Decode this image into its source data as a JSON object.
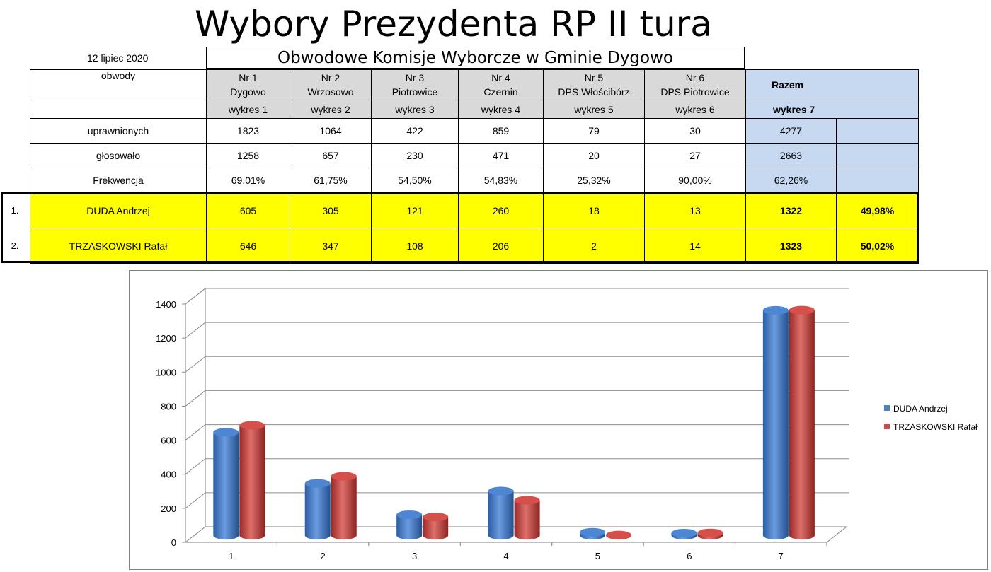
{
  "title": "Wybory Prezydenta RP II tura",
  "date": "12 lipiec 2020",
  "committee_title": "Obwodowe Komisje Wyborcze w Gminie Dygowo",
  "table": {
    "obwody_label": "obwody",
    "columns": [
      {
        "nr": "Nr 1",
        "name": "Dygowo",
        "chart_ref": "wykres 1"
      },
      {
        "nr": "Nr 2",
        "name": "Wrzosowo",
        "chart_ref": "wykres 2"
      },
      {
        "nr": "Nr 3",
        "name": "Piotrowice",
        "chart_ref": "wykres 3"
      },
      {
        "nr": "Nr 4",
        "name": "Czernin",
        "chart_ref": "wykres 4"
      },
      {
        "nr": "Nr 5",
        "name": "DPS Włościbórz",
        "chart_ref": "wykres 5"
      },
      {
        "nr": "Nr 6",
        "name": "DPS Piotrowice",
        "chart_ref": "wykres 6"
      }
    ],
    "total_label": "Razem",
    "total_chart_ref": "wykres 7",
    "rows": [
      {
        "label": "uprawnionych",
        "values": [
          "1823",
          "1064",
          "422",
          "859",
          "79",
          "30"
        ],
        "total": "4277"
      },
      {
        "label": "głosowało",
        "values": [
          "1258",
          "657",
          "230",
          "471",
          "20",
          "27"
        ],
        "total": "2663"
      },
      {
        "label": "Frekwencja",
        "values": [
          "69,01%",
          "61,75%",
          "54,50%",
          "54,83%",
          "25,32%",
          "90,00%"
        ],
        "total": "62,26%"
      }
    ],
    "candidates": [
      {
        "index": "1.",
        "name": "DUDA Andrzej",
        "values": [
          "605",
          "305",
          "121",
          "260",
          "18",
          "13"
        ],
        "total": "1322",
        "percent": "49,98%"
      },
      {
        "index": "2.",
        "name": "TRZASKOWSKI Rafał",
        "values": [
          "646",
          "347",
          "108",
          "206",
          "2",
          "14"
        ],
        "total": "1323",
        "percent": "50,02%"
      }
    ]
  },
  "colors": {
    "candidate_row": "#ffff00",
    "header_grey": "#d9d9d9",
    "total_blue": "#c6d9f1",
    "series_blue": "#4f81bd",
    "series_red": "#c0504d"
  },
  "chart_data": {
    "type": "bar",
    "style": "3d-cylinder",
    "categories": [
      "1",
      "2",
      "3",
      "4",
      "5",
      "6",
      "7"
    ],
    "series": [
      {
        "name": "DUDA Andrzej",
        "values": [
          605,
          305,
          121,
          260,
          18,
          13,
          1322
        ]
      },
      {
        "name": "TRZASKOWSKI Rafał",
        "values": [
          646,
          347,
          108,
          206,
          2,
          14,
          1323
        ]
      }
    ],
    "ylim": [
      0,
      1400
    ],
    "yticks": [
      "0",
      "200",
      "400",
      "600",
      "800",
      "1000",
      "1200",
      "1400"
    ],
    "grid": true,
    "legend": "right"
  }
}
